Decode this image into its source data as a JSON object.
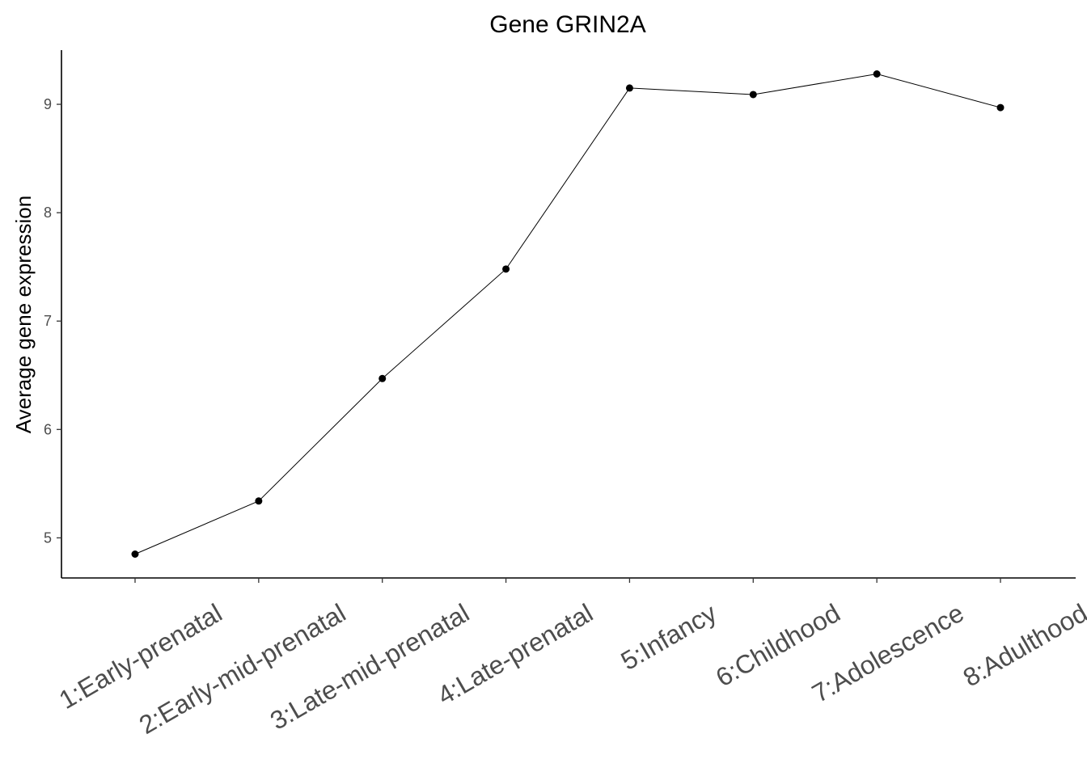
{
  "chart_data": {
    "type": "line",
    "title": "Gene GRIN2A",
    "xlabel": "",
    "ylabel": "Average gene expression",
    "categories": [
      "1:Early-prenatal",
      "2:Early-mid-prenatal",
      "3:Late-mid-prenatal",
      "4:Late-prenatal",
      "5:Infancy",
      "6:Childhood",
      "7:Adolescence",
      "8:Adulthood"
    ],
    "values": [
      4.85,
      5.34,
      6.47,
      7.48,
      9.15,
      9.09,
      9.28,
      8.97
    ],
    "yticks": [
      5,
      6,
      7,
      8,
      9
    ],
    "ylim": [
      4.63,
      9.5
    ],
    "grid": false,
    "line_color": "#000000",
    "point_color": "#000000"
  }
}
